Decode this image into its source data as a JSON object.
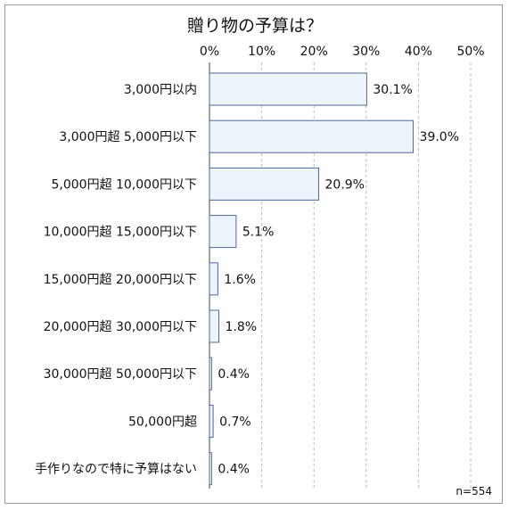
{
  "chart_data": {
    "type": "bar",
    "orientation": "horizontal",
    "title": "贈り物の予算は？",
    "note": "n=554",
    "categories": [
      "3,000円以内",
      "3,000円超 5,000円以下",
      "5,000円超 10,000円以下",
      "10,000円超 15,000円以下",
      "15,000円超 20,000円以下",
      "20,000円超 30,000円以下",
      "30,000円超 50,000円以下",
      "50,000円超",
      "手作りなので特に予算はない"
    ],
    "values": [
      30.1,
      39.0,
      20.9,
      5.1,
      1.6,
      1.8,
      0.4,
      0.7,
      0.4
    ],
    "value_labels": [
      "30.1%",
      "39.0%",
      "20.9%",
      "5.1%",
      "1.6%",
      "1.8%",
      "0.4%",
      "0.7%",
      "0.4%"
    ],
    "xlim": [
      0,
      50
    ],
    "ticks": [
      0,
      10,
      20,
      30,
      40,
      50
    ],
    "tick_labels": [
      "0%",
      "10%",
      "20%",
      "30%",
      "40%",
      "50%"
    ],
    "grid": "vertical-dashed",
    "bar_fill": "#eef4fc",
    "bar_stroke": "#4a6a9a"
  }
}
